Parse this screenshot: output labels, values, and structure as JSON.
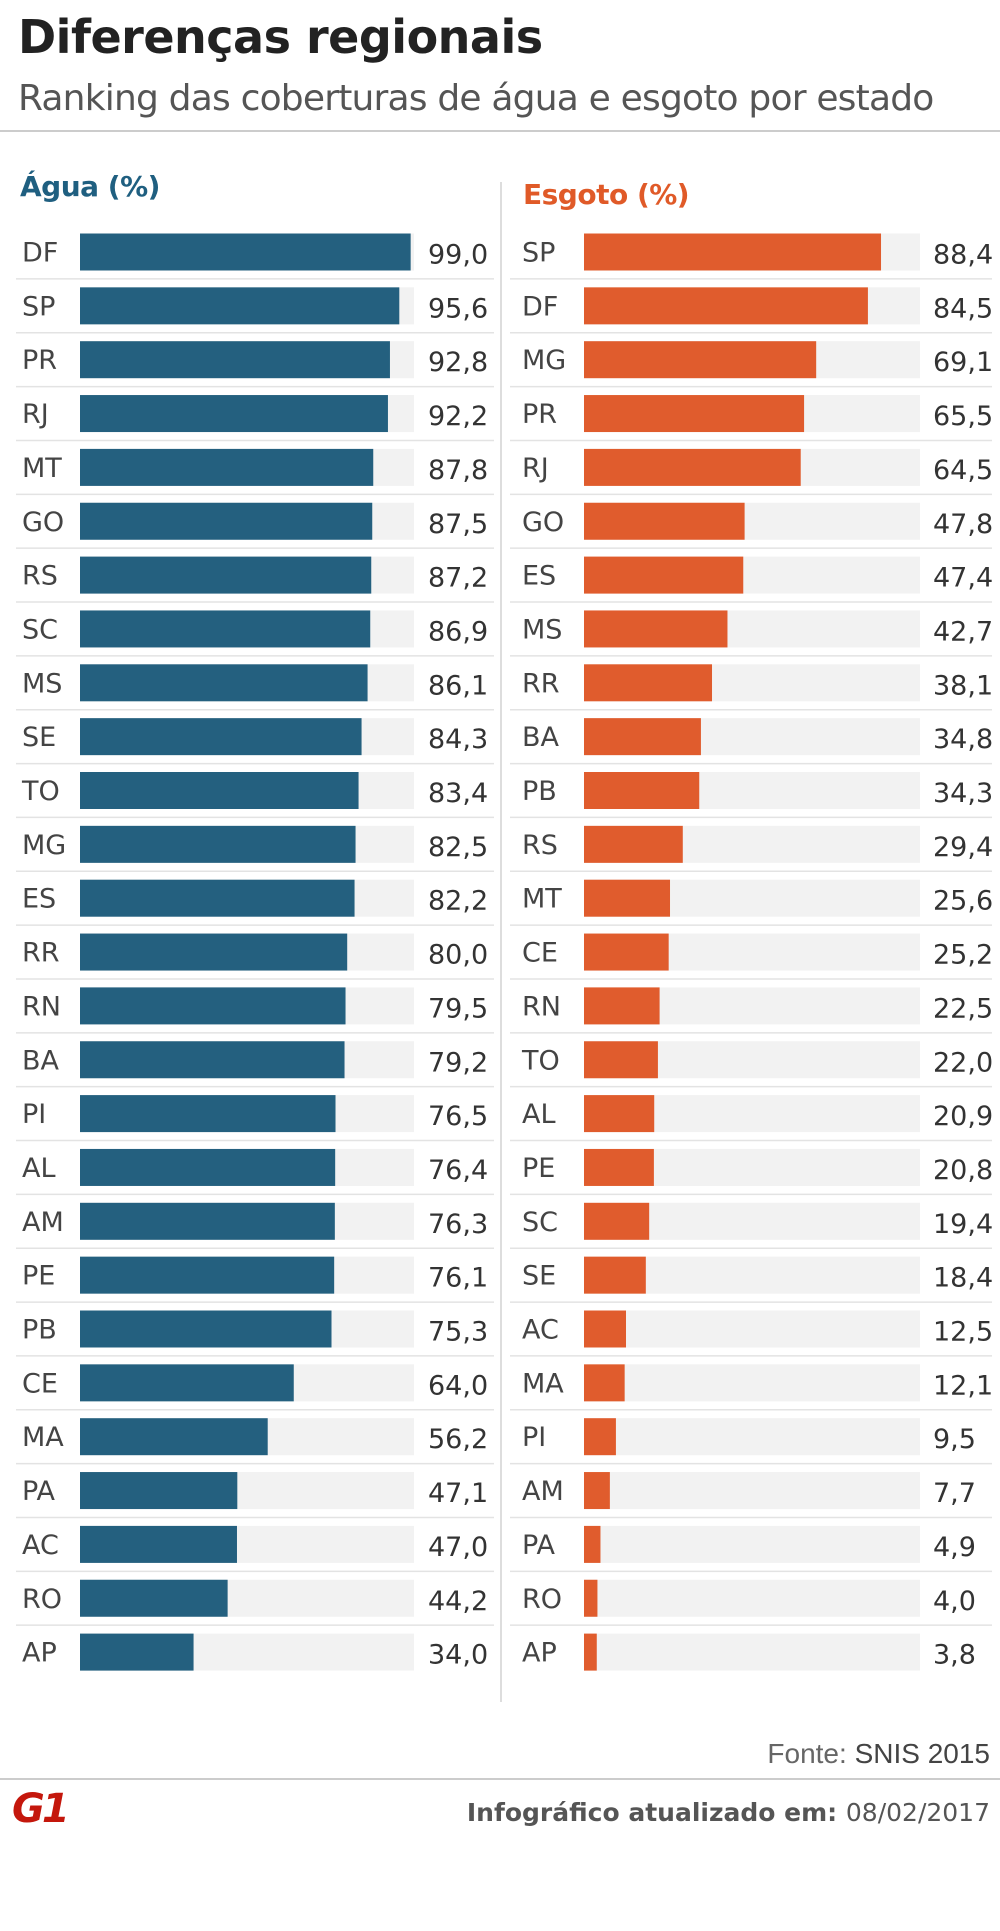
{
  "title": "Diferenças regionais",
  "subtitle": "Ranking das coberturas de água e esgoto por estado",
  "source_prefix": "Fonte:",
  "source_name": "SNIS 2015",
  "updated_label": "Infográfico atualizado em:",
  "updated_date": "08/02/2017",
  "logo_text": "G1",
  "colors": {
    "agua": "#24607f",
    "esgoto": "#e05c2d",
    "track": "#f2f2f2",
    "logo": "#c4170c"
  },
  "chart_data": [
    {
      "type": "bar",
      "orientation": "horizontal",
      "title": "Água (%)",
      "xlim": [
        0,
        100
      ],
      "categories": [
        "DF",
        "SP",
        "PR",
        "RJ",
        "MT",
        "GO",
        "RS",
        "SC",
        "MS",
        "SE",
        "TO",
        "MG",
        "ES",
        "RR",
        "RN",
        "BA",
        "PI",
        "AL",
        "AM",
        "PE",
        "PB",
        "CE",
        "MA",
        "PA",
        "AC",
        "RO",
        "AP"
      ],
      "values": [
        "99,0",
        "95,6",
        "92,8",
        "92,2",
        "87,8",
        "87,5",
        "87,2",
        "86,9",
        "86,1",
        "84,3",
        "83,4",
        "82,5",
        "82,2",
        "80,0",
        "79,5",
        "79,2",
        "76,5",
        "76,4",
        "76,3",
        "76,1",
        "75,3",
        "64,0",
        "56,2",
        "47,1",
        "47,0",
        "44,2",
        "34,0"
      ]
    },
    {
      "type": "bar",
      "orientation": "horizontal",
      "title": "Esgoto (%)",
      "xlim": [
        0,
        100
      ],
      "categories": [
        "SP",
        "DF",
        "MG",
        "PR",
        "RJ",
        "GO",
        "ES",
        "MS",
        "RR",
        "BA",
        "PB",
        "RS",
        "MT",
        "CE",
        "RN",
        "TO",
        "AL",
        "PE",
        "SC",
        "SE",
        "AC",
        "MA",
        "PI",
        "AM",
        "PA",
        "RO",
        "AP"
      ],
      "values": [
        "88,4",
        "84,5",
        "69,1",
        "65,5",
        "64,5",
        "47,8",
        "47,4",
        "42,7",
        "38,1",
        "34,8",
        "34,3",
        "29,4",
        "25,6",
        "25,2",
        "22,5",
        "22,0",
        "20,9",
        "20,8",
        "19,4",
        "18,4",
        "12,5",
        "12,1",
        "9,5",
        "7,7",
        "4,9",
        "4,0",
        "3,8"
      ]
    }
  ]
}
